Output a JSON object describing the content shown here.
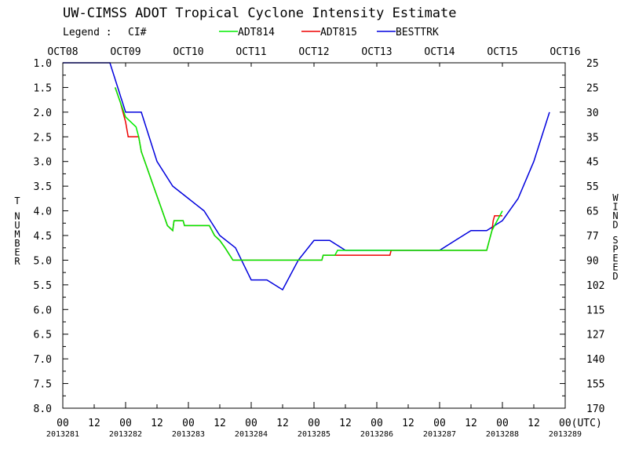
{
  "chart_data": {
    "type": "line",
    "title": "UW-CIMSS ADOT Tropical Cyclone Intensity Estimate",
    "legend": {
      "label": "Legend :",
      "ci_label": "CI#",
      "placement": "top",
      "entries": [
        {
          "name": "ADT814",
          "color": "#00ee00"
        },
        {
          "name": "ADT815",
          "color": "#ee0000"
        },
        {
          "name": "BESTTRK",
          "color": "#0000dd"
        }
      ]
    },
    "top_axis_labels": [
      "OCT08",
      "OCT09",
      "OCT10",
      "OCT11",
      "OCT12",
      "OCT13",
      "OCT14",
      "OCT15",
      "OCT16"
    ],
    "x_hours_range": [
      0,
      192
    ],
    "x_tick_labels": [
      "00",
      "12",
      "00",
      "12",
      "00",
      "12",
      "00",
      "12",
      "00",
      "12",
      "00",
      "12",
      "00",
      "12",
      "00",
      "12",
      "00(UTC)"
    ],
    "x_date_labels": [
      "2013281",
      "2013282",
      "2013283",
      "2013284",
      "2013285",
      "2013286",
      "2013287",
      "2013288",
      "2013289"
    ],
    "y_left_label": "T NUMBER",
    "y_left_range": [
      1.0,
      8.0
    ],
    "y_left_ticks": [
      "1.0",
      "1.5",
      "2.0",
      "2.5",
      "3.0",
      "3.5",
      "4.0",
      "4.5",
      "5.0",
      "5.5",
      "6.0",
      "6.5",
      "7.0",
      "7.5",
      "8.0"
    ],
    "y_right_label": "WIND SPEED",
    "y_right_ticks": [
      "25",
      "25",
      "30",
      "35",
      "45",
      "55",
      "65",
      "77",
      "90",
      "102",
      "115",
      "127",
      "140",
      "155",
      "170"
    ],
    "grid": false,
    "series": [
      {
        "name": "BESTTRK",
        "color": "#0000dd",
        "points": [
          [
            0,
            1.0
          ],
          [
            18,
            1.0
          ],
          [
            24,
            2.0
          ],
          [
            30,
            2.0
          ],
          [
            36,
            3.0
          ],
          [
            42,
            3.5
          ],
          [
            48,
            3.75
          ],
          [
            54,
            4.0
          ],
          [
            60,
            4.5
          ],
          [
            66,
            4.75
          ],
          [
            72,
            5.4
          ],
          [
            78,
            5.4
          ],
          [
            84,
            5.6
          ],
          [
            90,
            5.0
          ],
          [
            96,
            4.6
          ],
          [
            102,
            4.6
          ],
          [
            108,
            4.8
          ],
          [
            114,
            4.8
          ],
          [
            120,
            4.8
          ],
          [
            126,
            4.8
          ],
          [
            132,
            4.8
          ],
          [
            138,
            4.8
          ],
          [
            144,
            4.8
          ],
          [
            150,
            4.6
          ],
          [
            156,
            4.4
          ],
          [
            162,
            4.4
          ],
          [
            168,
            4.2
          ],
          [
            174,
            3.75
          ],
          [
            180,
            3.0
          ],
          [
            186,
            2.0
          ]
        ]
      },
      {
        "name": "ADT815",
        "color": "#ee0000",
        "points": [
          [
            20,
            1.5
          ],
          [
            22,
            1.8
          ],
          [
            24,
            2.2
          ],
          [
            25,
            2.5
          ],
          [
            29,
            2.5
          ],
          [
            30,
            2.8
          ],
          [
            32,
            3.1
          ],
          [
            34,
            3.4
          ],
          [
            36,
            3.7
          ],
          [
            38,
            4.0
          ],
          [
            40,
            4.3
          ],
          [
            42,
            4.4
          ],
          [
            42.5,
            4.2
          ],
          [
            46,
            4.2
          ],
          [
            46.5,
            4.3
          ],
          [
            56,
            4.3
          ],
          [
            58,
            4.5
          ],
          [
            60,
            4.6
          ],
          [
            62,
            4.75
          ],
          [
            65,
            5.0
          ],
          [
            99,
            5.0
          ],
          [
            99.5,
            4.9
          ],
          [
            125,
            4.9
          ],
          [
            125.5,
            4.8
          ],
          [
            162,
            4.8
          ],
          [
            163,
            4.6
          ],
          [
            164,
            4.4
          ],
          [
            164.5,
            4.2
          ],
          [
            165,
            4.1
          ],
          [
            168,
            4.1
          ]
        ]
      },
      {
        "name": "ADT814",
        "color": "#00ee00",
        "points": [
          [
            20,
            1.5
          ],
          [
            22,
            1.8
          ],
          [
            24,
            2.1
          ],
          [
            26,
            2.2
          ],
          [
            28,
            2.3
          ],
          [
            29,
            2.5
          ],
          [
            30,
            2.8
          ],
          [
            32,
            3.1
          ],
          [
            34,
            3.4
          ],
          [
            36,
            3.7
          ],
          [
            38,
            4.0
          ],
          [
            40,
            4.3
          ],
          [
            42,
            4.4
          ],
          [
            42.5,
            4.2
          ],
          [
            46,
            4.2
          ],
          [
            46.5,
            4.3
          ],
          [
            56,
            4.3
          ],
          [
            58,
            4.5
          ],
          [
            60,
            4.6
          ],
          [
            62,
            4.75
          ],
          [
            65,
            5.0
          ],
          [
            99,
            5.0
          ],
          [
            99.5,
            4.9
          ],
          [
            104,
            4.9
          ],
          [
            105,
            4.8
          ],
          [
            162,
            4.8
          ],
          [
            163,
            4.6
          ],
          [
            164,
            4.4
          ],
          [
            166,
            4.2
          ],
          [
            168,
            4.0
          ]
        ]
      }
    ]
  }
}
